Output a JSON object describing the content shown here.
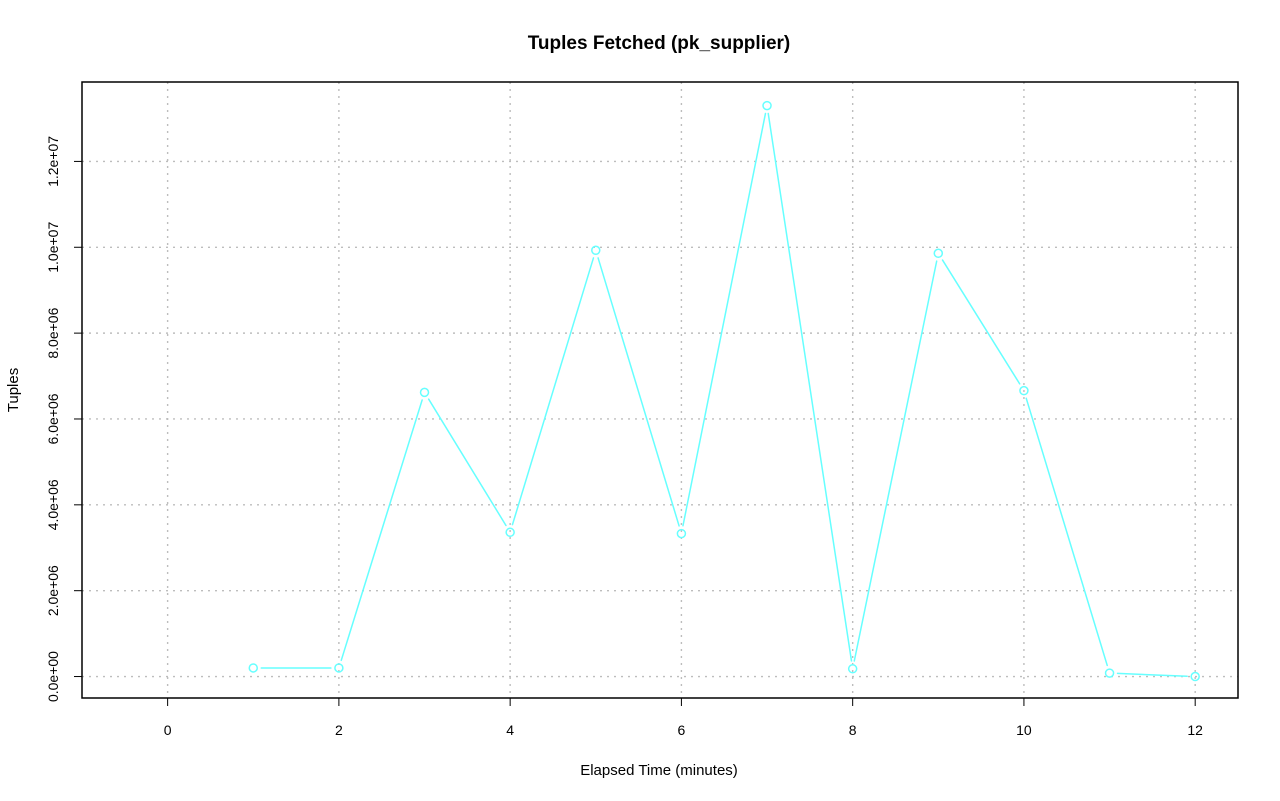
{
  "chart_data": {
    "type": "line",
    "title": "Tuples Fetched (pk_supplier)",
    "xlabel": "Elapsed Time (minutes)",
    "ylabel": "Tuples",
    "xlim": [
      -1,
      12.5
    ],
    "ylim": [
      -500000,
      13850000
    ],
    "x_ticks": [
      0,
      2,
      4,
      6,
      8,
      10,
      12
    ],
    "x_tick_labels": [
      "0",
      "2",
      "4",
      "6",
      "8",
      "10",
      "12"
    ],
    "y_ticks": [
      0,
      2000000,
      4000000,
      6000000,
      8000000,
      10000000,
      12000000
    ],
    "y_tick_labels": [
      "0.0e+00",
      "2.0e+06",
      "4.0e+06",
      "6.0e+06",
      "8.0e+06",
      "1.0e+07",
      "1.2e+07"
    ],
    "grid": true,
    "series": [
      {
        "color": "#66ffff",
        "marker": "open-circle",
        "x": [
          1,
          2,
          3,
          4,
          5,
          6,
          7,
          8,
          9,
          10,
          11,
          12
        ],
        "y": [
          200000,
          200000,
          6620000,
          3360000,
          9930000,
          3330000,
          13300000,
          180000,
          9860000,
          6660000,
          80000,
          0
        ]
      }
    ]
  }
}
